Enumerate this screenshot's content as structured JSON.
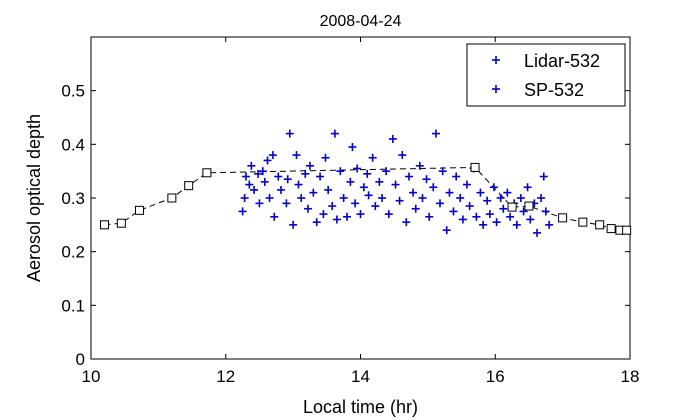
{
  "chart_data": {
    "type": "scatter",
    "title": "2008-04-24",
    "xlabel": "Local time (hr)",
    "ylabel": "Aerosol optical depth",
    "xlim": [
      10,
      18
    ],
    "ylim": [
      0,
      0.6
    ],
    "xticks": [
      "10",
      "12",
      "14",
      "16",
      "18"
    ],
    "yticks": [
      "0",
      "0.1",
      "0.2",
      "0.3",
      "0.4",
      "0.5"
    ],
    "grid": false,
    "legend": "top-right",
    "series": [
      {
        "name": "Lidar-532",
        "marker": "plus",
        "color": "#0000cc",
        "points": [
          [
            12.25,
            0.275
          ],
          [
            12.28,
            0.3
          ],
          [
            12.3,
            0.34
          ],
          [
            12.35,
            0.325
          ],
          [
            12.38,
            0.36
          ],
          [
            12.42,
            0.315
          ],
          [
            12.48,
            0.345
          ],
          [
            12.5,
            0.29
          ],
          [
            12.55,
            0.35
          ],
          [
            12.58,
            0.33
          ],
          [
            12.62,
            0.37
          ],
          [
            12.65,
            0.3
          ],
          [
            12.7,
            0.38
          ],
          [
            12.72,
            0.265
          ],
          [
            12.78,
            0.34
          ],
          [
            12.82,
            0.315
          ],
          [
            12.9,
            0.29
          ],
          [
            12.92,
            0.335
          ],
          [
            12.95,
            0.42
          ],
          [
            13.0,
            0.25
          ],
          [
            13.05,
            0.38
          ],
          [
            13.08,
            0.325
          ],
          [
            13.12,
            0.3
          ],
          [
            13.18,
            0.345
          ],
          [
            13.22,
            0.28
          ],
          [
            13.25,
            0.36
          ],
          [
            13.3,
            0.31
          ],
          [
            13.35,
            0.255
          ],
          [
            13.4,
            0.34
          ],
          [
            13.45,
            0.27
          ],
          [
            13.48,
            0.375
          ],
          [
            13.52,
            0.315
          ],
          [
            13.58,
            0.285
          ],
          [
            13.62,
            0.42
          ],
          [
            13.65,
            0.26
          ],
          [
            13.7,
            0.35
          ],
          [
            13.75,
            0.3
          ],
          [
            13.8,
            0.265
          ],
          [
            13.85,
            0.33
          ],
          [
            13.88,
            0.395
          ],
          [
            13.92,
            0.29
          ],
          [
            13.95,
            0.355
          ],
          [
            14.0,
            0.27
          ],
          [
            14.05,
            0.32
          ],
          [
            14.1,
            0.345
          ],
          [
            14.12,
            0.305
          ],
          [
            14.18,
            0.375
          ],
          [
            14.22,
            0.285
          ],
          [
            14.28,
            0.33
          ],
          [
            14.32,
            0.3
          ],
          [
            14.38,
            0.35
          ],
          [
            14.42,
            0.27
          ],
          [
            14.48,
            0.41
          ],
          [
            14.52,
            0.325
          ],
          [
            14.58,
            0.295
          ],
          [
            14.62,
            0.38
          ],
          [
            14.68,
            0.255
          ],
          [
            14.72,
            0.34
          ],
          [
            14.78,
            0.31
          ],
          [
            14.82,
            0.28
          ],
          [
            14.88,
            0.36
          ],
          [
            14.92,
            0.3
          ],
          [
            14.98,
            0.335
          ],
          [
            15.02,
            0.265
          ],
          [
            15.08,
            0.32
          ],
          [
            15.12,
            0.42
          ],
          [
            15.18,
            0.29
          ],
          [
            15.22,
            0.35
          ],
          [
            15.28,
            0.24
          ],
          [
            15.32,
            0.31
          ],
          [
            15.38,
            0.275
          ],
          [
            15.42,
            0.34
          ],
          [
            15.48,
            0.3
          ],
          [
            15.52,
            0.26
          ],
          [
            15.58,
            0.325
          ],
          [
            15.62,
            0.285
          ],
          [
            15.68,
            0.355
          ],
          [
            15.72,
            0.265
          ],
          [
            15.78,
            0.31
          ],
          [
            15.82,
            0.25
          ],
          [
            15.88,
            0.295
          ],
          [
            15.92,
            0.27
          ],
          [
            15.98,
            0.32
          ],
          [
            16.02,
            0.255
          ],
          [
            16.08,
            0.3
          ],
          [
            16.12,
            0.28
          ],
          [
            16.18,
            0.31
          ],
          [
            16.22,
            0.265
          ],
          [
            16.28,
            0.29
          ],
          [
            16.32,
            0.25
          ],
          [
            16.38,
            0.3
          ],
          [
            16.42,
            0.275
          ],
          [
            16.48,
            0.32
          ],
          [
            16.52,
            0.26
          ],
          [
            16.58,
            0.29
          ],
          [
            16.62,
            0.235
          ],
          [
            16.68,
            0.3
          ],
          [
            16.72,
            0.34
          ],
          [
            16.75,
            0.275
          ],
          [
            16.8,
            0.25
          ]
        ]
      },
      {
        "name": "SP-532",
        "marker": "square",
        "color": "#000000",
        "dashed": true,
        "points": [
          [
            10.2,
            0.25
          ],
          [
            10.45,
            0.253
          ],
          [
            10.72,
            0.277
          ],
          [
            11.2,
            0.3
          ],
          [
            11.45,
            0.323
          ],
          [
            11.72,
            0.347
          ],
          [
            15.7,
            0.357
          ],
          [
            16.25,
            0.283
          ],
          [
            16.5,
            0.285
          ],
          [
            17.0,
            0.263
          ],
          [
            17.3,
            0.255
          ],
          [
            17.55,
            0.25
          ],
          [
            17.72,
            0.243
          ],
          [
            17.85,
            0.24
          ],
          [
            17.95,
            0.24
          ]
        ]
      }
    ]
  }
}
